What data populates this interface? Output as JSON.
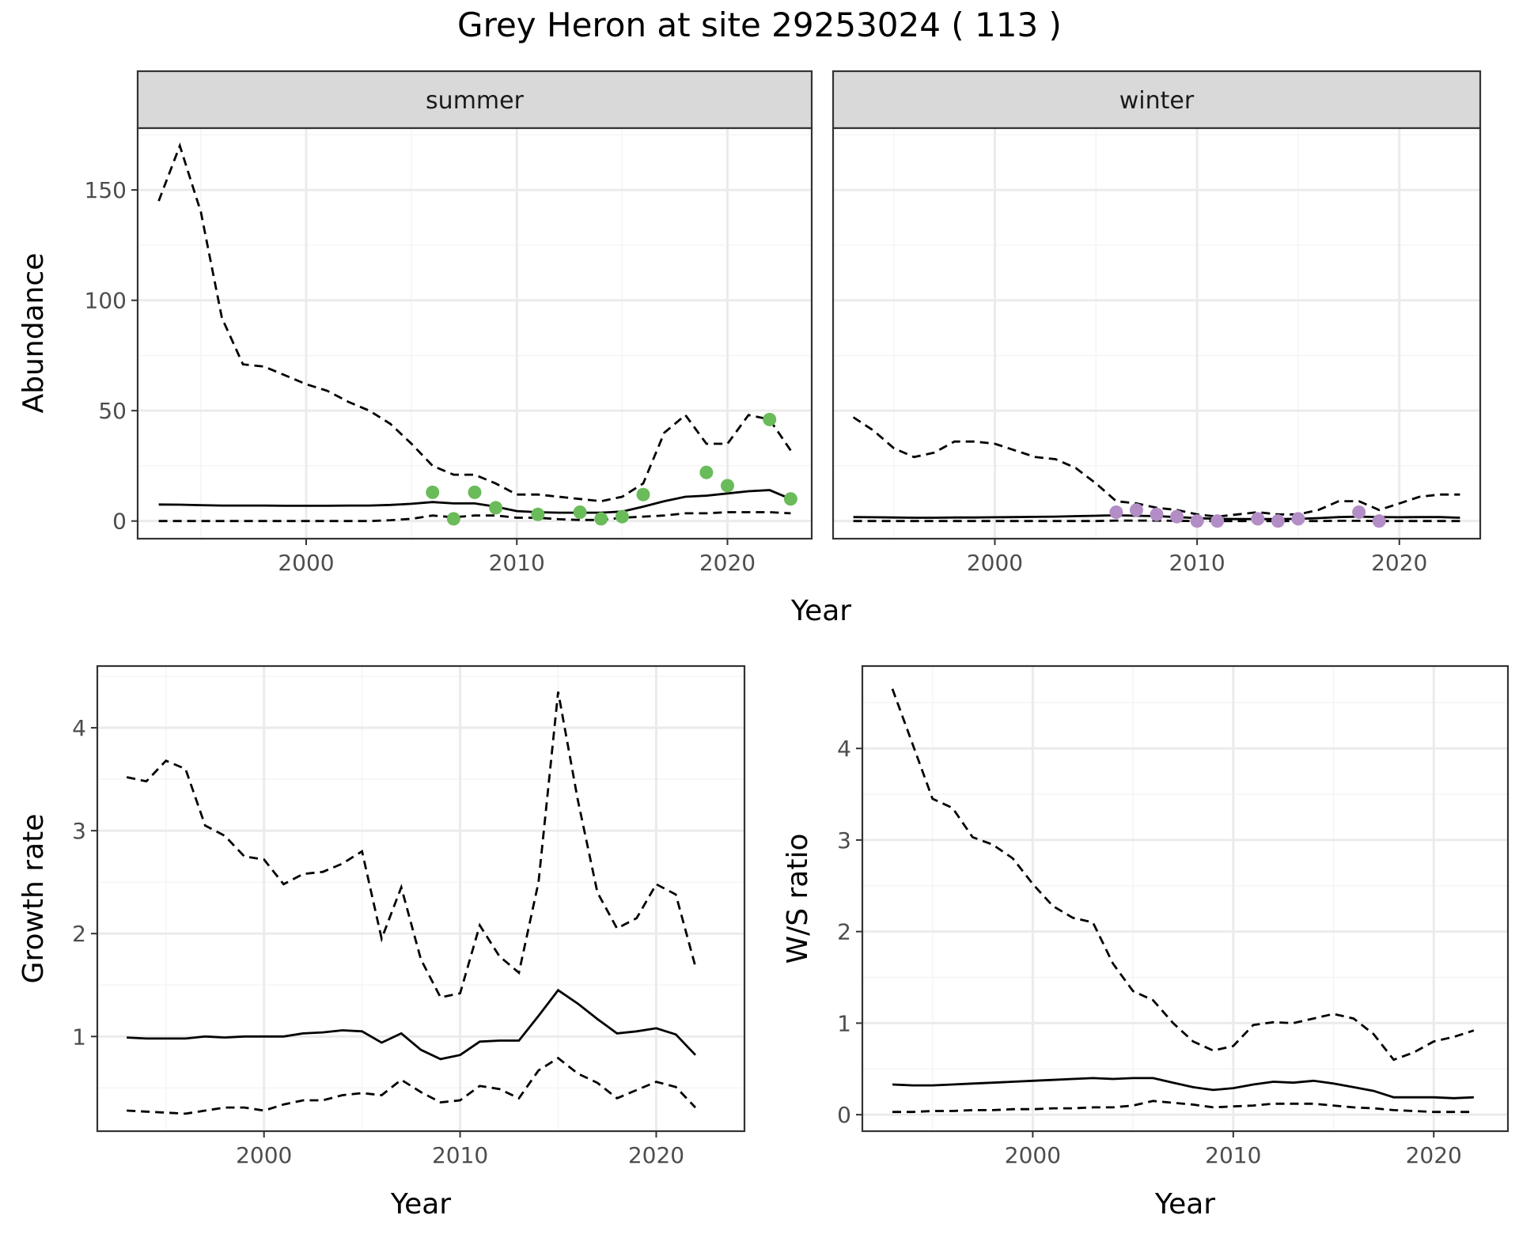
{
  "title": "Grey Heron at site 29253024 ( 113 )",
  "colors": {
    "summer_points": "#6abb5a",
    "winter_points": "#b38dc6",
    "line": "#000000",
    "panel_border": "#333333",
    "grid_major": "#ebebeb",
    "grid_minor": "#f5f5f5",
    "strip_fill": "#d9d9d9",
    "tick_label": "#4d4d4d"
  },
  "chart_data": [
    {
      "type": "line",
      "title": "",
      "xlabel": "Year",
      "ylabel": "Abundance",
      "xlim": [
        1992,
        2024
      ],
      "ylim": [
        -8,
        178
      ],
      "xticks": [
        2000,
        2010,
        2020
      ],
      "yticks": [
        0,
        50,
        100,
        150
      ],
      "grid": true,
      "facets": [
        {
          "label": "summer",
          "x": [
            1993,
            1994,
            1995,
            1996,
            1997,
            1998,
            1999,
            2000,
            2001,
            2002,
            2003,
            2004,
            2005,
            2006,
            2007,
            2008,
            2009,
            2010,
            2011,
            2012,
            2013,
            2014,
            2015,
            2016,
            2017,
            2018,
            2019,
            2020,
            2021,
            2022,
            2023
          ],
          "estimate": [
            7.5,
            7.4,
            7.2,
            7,
            7,
            7,
            6.9,
            6.9,
            6.9,
            7,
            7,
            7.3,
            7.8,
            8.6,
            8,
            8,
            6.5,
            4.5,
            4,
            3.8,
            3.8,
            3.8,
            4.3,
            6.5,
            9,
            11,
            11.5,
            12.5,
            13.5,
            14,
            10
          ],
          "upper": [
            145,
            170,
            140,
            92,
            71,
            70,
            66,
            62,
            59,
            54,
            50,
            44,
            35,
            25,
            21,
            21,
            17,
            12,
            12,
            11,
            10,
            9,
            11,
            17,
            40,
            48,
            35,
            35,
            48,
            46,
            32
          ],
          "lower": [
            0,
            0,
            0,
            0,
            0,
            0,
            0,
            0,
            0,
            0,
            0,
            0.4,
            1,
            2.5,
            1.7,
            2.5,
            2.5,
            1.5,
            1.5,
            0.8,
            0.5,
            0.5,
            1.5,
            2,
            2.5,
            3.5,
            3.5,
            4,
            4,
            4,
            3.5
          ],
          "observed": {
            "x": [
              2006,
              2007,
              2008,
              2009,
              2011,
              2013,
              2014,
              2015,
              2016,
              2019,
              2020,
              2022,
              2023
            ],
            "y": [
              13,
              1,
              13,
              6,
              3,
              4,
              1,
              2,
              12,
              22,
              16,
              46,
              10
            ]
          }
        },
        {
          "label": "winter",
          "x": [
            1993,
            1994,
            1995,
            1996,
            1997,
            1998,
            1999,
            2000,
            2001,
            2002,
            2003,
            2004,
            2005,
            2006,
            2007,
            2008,
            2009,
            2010,
            2011,
            2012,
            2013,
            2014,
            2015,
            2016,
            2017,
            2018,
            2019,
            2020,
            2021,
            2022,
            2023
          ],
          "estimate": [
            1.8,
            1.7,
            1.6,
            1.5,
            1.5,
            1.6,
            1.6,
            1.7,
            1.8,
            1.9,
            2,
            2.2,
            2.4,
            2.6,
            2.4,
            2.2,
            1.8,
            1.3,
            1,
            0.9,
            0.9,
            0.9,
            1,
            1.3,
            1.8,
            2,
            1.8,
            1.7,
            1.8,
            1.8,
            1.5
          ],
          "upper": [
            47,
            41,
            33,
            29,
            31,
            36,
            36,
            35,
            32,
            29,
            28,
            24,
            17,
            9,
            8,
            6,
            5,
            3,
            2,
            3,
            4,
            3,
            3,
            5,
            9,
            9,
            5,
            8,
            11,
            12,
            12
          ],
          "lower": [
            0,
            0,
            0,
            0,
            0,
            0,
            0,
            0,
            0,
            0,
            0,
            0,
            0,
            0.2,
            0.2,
            0.2,
            0.1,
            0,
            0,
            0,
            0,
            0,
            0,
            0,
            0.1,
            0.1,
            0,
            0,
            0,
            0,
            0
          ],
          "observed": {
            "x": [
              2006,
              2007,
              2008,
              2009,
              2010,
              2011,
              2013,
              2014,
              2015,
              2018,
              2019
            ],
            "y": [
              4,
              5,
              3,
              2,
              0,
              0,
              1,
              0,
              1,
              4,
              0
            ]
          }
        }
      ]
    },
    {
      "type": "line",
      "title": "",
      "xlabel": "Year",
      "ylabel": "Growth rate",
      "xlim": [
        1991.5,
        2024.5
      ],
      "ylim": [
        0.08,
        4.6
      ],
      "xticks": [
        2000,
        2010,
        2020
      ],
      "yticks": [
        1,
        2,
        3,
        4
      ],
      "grid": true,
      "x": [
        1993,
        1994,
        1995,
        1996,
        1997,
        1998,
        1999,
        2000,
        2001,
        2002,
        2003,
        2004,
        2005,
        2006,
        2007,
        2008,
        2009,
        2010,
        2011,
        2012,
        2013,
        2014,
        2015,
        2016,
        2017,
        2018,
        2019,
        2020,
        2021,
        2022
      ],
      "estimate": [
        0.99,
        0.98,
        0.98,
        0.98,
        1,
        0.99,
        1,
        1,
        1,
        1.03,
        1.04,
        1.06,
        1.05,
        0.94,
        1.03,
        0.87,
        0.78,
        0.82,
        0.95,
        0.96,
        0.96,
        1.2,
        1.45,
        1.32,
        1.17,
        1.03,
        1.05,
        1.08,
        1.02,
        0.82
      ],
      "upper": [
        3.52,
        3.48,
        3.68,
        3.6,
        3.05,
        2.95,
        2.75,
        2.72,
        2.48,
        2.58,
        2.6,
        2.68,
        2.8,
        1.95,
        2.45,
        1.75,
        1.38,
        1.42,
        2.08,
        1.78,
        1.62,
        2.5,
        4.35,
        3.3,
        2.4,
        2.05,
        2.15,
        2.48,
        2.38,
        1.68
      ],
      "lower": [
        0.28,
        0.27,
        0.26,
        0.25,
        0.28,
        0.31,
        0.31,
        0.28,
        0.34,
        0.38,
        0.38,
        0.43,
        0.45,
        0.43,
        0.58,
        0.46,
        0.36,
        0.38,
        0.52,
        0.49,
        0.4,
        0.67,
        0.79,
        0.64,
        0.55,
        0.4,
        0.48,
        0.56,
        0.51,
        0.31
      ]
    },
    {
      "type": "line",
      "title": "",
      "xlabel": "Year",
      "ylabel": "W/S ratio",
      "xlim": [
        1991.5,
        2023.7
      ],
      "ylim": [
        -0.18,
        4.9
      ],
      "xticks": [
        2000,
        2010,
        2020
      ],
      "yticks": [
        0,
        1,
        2,
        3,
        4
      ],
      "grid": true,
      "x": [
        1993,
        1994,
        1995,
        1996,
        1997,
        1998,
        1999,
        2000,
        2001,
        2002,
        2003,
        2004,
        2005,
        2006,
        2007,
        2008,
        2009,
        2010,
        2011,
        2012,
        2013,
        2014,
        2015,
        2016,
        2017,
        2018,
        2019,
        2020,
        2021,
        2022
      ],
      "estimate": [
        0.33,
        0.32,
        0.32,
        0.33,
        0.34,
        0.35,
        0.36,
        0.37,
        0.38,
        0.39,
        0.4,
        0.39,
        0.4,
        0.4,
        0.35,
        0.3,
        0.27,
        0.29,
        0.33,
        0.36,
        0.35,
        0.37,
        0.34,
        0.3,
        0.26,
        0.19,
        0.19,
        0.19,
        0.18,
        0.19
      ],
      "upper": [
        4.65,
        4.05,
        3.45,
        3.35,
        3.03,
        2.95,
        2.8,
        2.52,
        2.28,
        2.15,
        2.1,
        1.65,
        1.35,
        1.25,
        1.0,
        0.8,
        0.7,
        0.75,
        0.98,
        1.01,
        1.0,
        1.05,
        1.1,
        1.05,
        0.88,
        0.6,
        0.68,
        0.8,
        0.85,
        0.92
      ],
      "lower": [
        0.03,
        0.03,
        0.04,
        0.04,
        0.05,
        0.05,
        0.06,
        0.06,
        0.07,
        0.07,
        0.08,
        0.08,
        0.1,
        0.15,
        0.13,
        0.11,
        0.08,
        0.09,
        0.1,
        0.12,
        0.12,
        0.12,
        0.1,
        0.08,
        0.07,
        0.05,
        0.04,
        0.03,
        0.03,
        0.03
      ]
    }
  ]
}
